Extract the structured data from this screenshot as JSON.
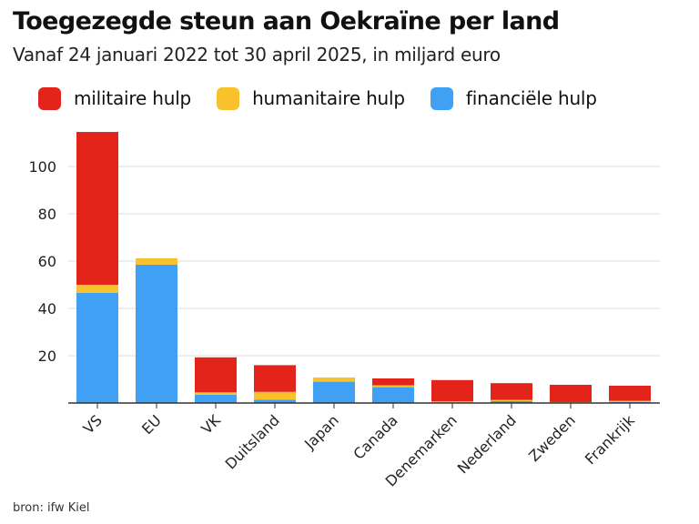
{
  "title": "Toegezegde steun aan Oekraïne per land",
  "subtitle": "Vanaf 24 januari 2022 tot 30 april 2025, in miljard euro",
  "source": "bron: ifw Kiel",
  "colors": {
    "militaire": "#e3241b",
    "humanitaire": "#f8c22c",
    "financiele": "#3fa0f4",
    "grid": "#dcdcdc",
    "axis": "#333333"
  },
  "legend": [
    {
      "label": "militaire hulp",
      "color": "#e3241b"
    },
    {
      "label": "humanitaire hulp",
      "color": "#f8c22c"
    },
    {
      "label": "financiële hulp",
      "color": "#3fa0f4"
    }
  ],
  "chart_data": {
    "type": "bar",
    "stacked": true,
    "title": "Toegezegde steun aan Oekraïne per land",
    "subtitle": "Vanaf 24 januari 2022 tot 30 april 2025, in miljard euro",
    "categories": [
      "VS",
      "EU",
      "VK",
      "Duitsland",
      "Japan",
      "Canada",
      "Denemarken",
      "Nederland",
      "Zweden",
      "Frankrijk"
    ],
    "series": [
      {
        "name": "financiële hulp",
        "color": "#3fa0f4",
        "values": [
          46.6,
          58.5,
          3.5,
          1.4,
          9.0,
          6.7,
          0.1,
          0.8,
          0.1,
          0.4
        ]
      },
      {
        "name": "humanitaire hulp",
        "color": "#f8c22c",
        "values": [
          3.4,
          2.7,
          1.0,
          3.3,
          1.8,
          0.8,
          0.6,
          0.5,
          0.3,
          0.5
        ]
      },
      {
        "name": "militaire hulp",
        "color": "#e3241b",
        "values": [
          64.6,
          0.0,
          14.8,
          11.3,
          0.0,
          2.9,
          9.0,
          7.1,
          7.3,
          6.4
        ]
      }
    ],
    "ylim": [
      0,
      115
    ],
    "yticks": [
      20,
      40,
      60,
      80,
      100
    ],
    "xlabel": "",
    "ylabel": "",
    "grid": true,
    "legend_position": "top"
  }
}
